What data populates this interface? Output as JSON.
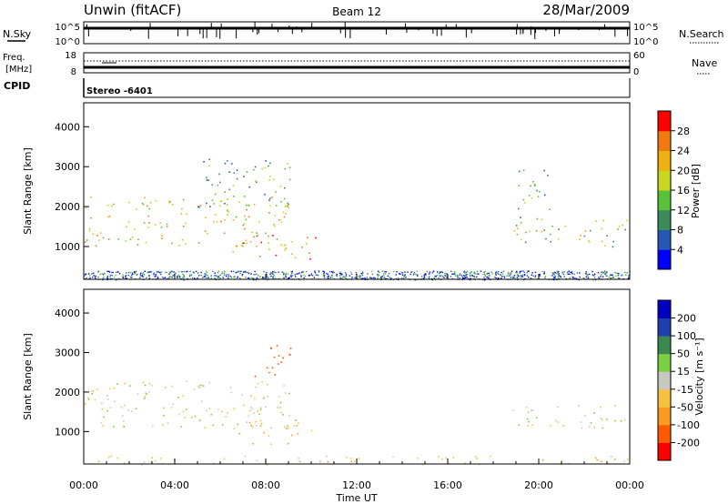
{
  "header": {
    "station": "Unwin (fitACF)",
    "beam": "Beam 12",
    "date": "28/Mar/2009"
  },
  "strip_nsky": {
    "left_label": "N.Sky",
    "left_ticks": [
      "10^5",
      "10^0"
    ],
    "right_ticks": [
      "10^5",
      "10^0"
    ],
    "right_label": "N.Search"
  },
  "strip_freq": {
    "left_label_1": "Freq.",
    "left_label_2": "[MHz]",
    "left_ticks": [
      "18",
      "8"
    ],
    "right_ticks": [
      "60",
      "0"
    ],
    "right_label": "Nave"
  },
  "cpid": {
    "label": "CPID",
    "value": "Stereo -6401"
  },
  "panels": {
    "power": {
      "ylabel": "Slant Range [km]",
      "yticks": [
        "4000",
        "3000",
        "2000",
        "1000"
      ],
      "colorbar_label": "Power [dB]",
      "colorbar_ticks": [
        "28",
        "24",
        "20",
        "16",
        "12",
        "8",
        "4"
      ]
    },
    "velocity": {
      "ylabel": "Slant Range [km]",
      "yticks": [
        "4000",
        "3000",
        "2000",
        "1000"
      ],
      "colorbar_label": "Velocity [m s⁻¹]",
      "colorbar_ticks": [
        "200",
        "100",
        "50",
        "15",
        "-15",
        "-50",
        "-100",
        "-200"
      ]
    }
  },
  "xaxis": {
    "label": "Time UT",
    "ticks": [
      "00:00",
      "04:00",
      "08:00",
      "12:00",
      "16:00",
      "20:00",
      "00:00"
    ]
  },
  "colors": {
    "power_scale": [
      "#0000ff",
      "#2457b8",
      "#3a8a5a",
      "#57c23a",
      "#c8d820",
      "#f0b010",
      "#f07a10",
      "#ff0000"
    ],
    "velocity_scale": [
      "#ff0000",
      "#ff5a00",
      "#ff9a20",
      "#f8c040",
      "#c8c8c0",
      "#7ad040",
      "#3a8a50",
      "#2040b0",
      "#0000c0"
    ]
  },
  "chart_data": [
    {
      "type": "heatmap",
      "name": "power",
      "x_range_hours": [
        0,
        24
      ],
      "y_range_km": [
        180,
        4600
      ],
      "z_range_db": [
        0,
        32
      ],
      "features": [
        {
          "t_start": 0.0,
          "t_end": 9.0,
          "range_start_km": 1000,
          "range_end_km": 2300,
          "level_db": 20
        },
        {
          "t_start": 6.5,
          "t_end": 10.2,
          "range_start_km": 700,
          "range_end_km": 1300,
          "level_db": 24
        },
        {
          "t_start": 5.0,
          "t_end": 9.3,
          "range_start_km": 2000,
          "range_end_km": 3300,
          "level_db": 12
        },
        {
          "t_start": 18.8,
          "t_end": 24.0,
          "range_start_km": 1000,
          "range_end_km": 1700,
          "level_db": 16
        },
        {
          "t_start": 19.0,
          "t_end": 20.5,
          "range_start_km": 1700,
          "range_end_km": 3000,
          "level_db": 12
        }
      ]
    },
    {
      "type": "heatmap",
      "name": "velocity",
      "x_range_hours": [
        0,
        24
      ],
      "y_range_km": [
        180,
        4600
      ],
      "z_range_ms": [
        -250,
        250
      ],
      "features": [
        {
          "t_start": 0.0,
          "t_end": 9.3,
          "range_start_km": 1100,
          "range_end_km": 2300,
          "velocity": 0
        },
        {
          "t_start": 6.5,
          "t_end": 10.0,
          "range_start_km": 700,
          "range_end_km": 1300,
          "velocity": -60
        },
        {
          "t_start": 7.5,
          "t_end": 9.4,
          "range_start_km": 2400,
          "range_end_km": 3200,
          "velocity": -150
        },
        {
          "t_start": 18.8,
          "t_end": 24.0,
          "range_start_km": 1100,
          "range_end_km": 1700,
          "velocity": 0
        },
        {
          "t_start": 0.0,
          "t_end": 24.0,
          "range_start_km": 180,
          "range_end_km": 400,
          "velocity": -30
        }
      ]
    }
  ]
}
